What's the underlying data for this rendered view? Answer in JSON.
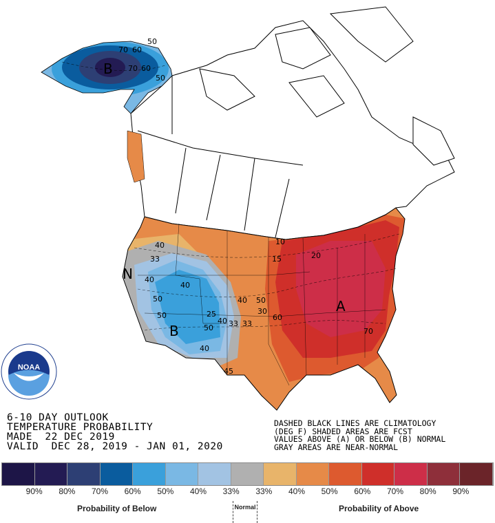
{
  "header": {
    "line1": "6-10 DAY OUTLOOK",
    "line2": "TEMPERATURE PROBABILITY",
    "line3": "MADE  22 DEC 2019",
    "line4": "VALID  DEC 28, 2019 - JAN 01, 2020"
  },
  "notes": {
    "line1": "DASHED BLACK LINES ARE CLIMATOLOGY",
    "line2": "(DEG F) SHADED AREAS ARE FCST",
    "line3": "VALUES ABOVE (A) OR BELOW (B) NORMAL",
    "line4": "GRAY AREAS ARE NEAR-NORMAL"
  },
  "logo": {
    "text": "NOAA",
    "ring_text": "NATIONAL OCEANIC AND ATMOSPHERIC ADMINISTRATION · U.S. DEPARTMENT OF COMMERCE"
  },
  "legend": {
    "colors": [
      "#1d1547",
      "#231b53",
      "#2d3f74",
      "#0a5c9e",
      "#3aa0db",
      "#7ab8e4",
      "#a2c3e3",
      "#b0b0b0",
      "#e8b46a",
      "#e68a48",
      "#dd5a2f",
      "#cf2f2a",
      "#cd2e48",
      "#8e2f3a",
      "#6b2429"
    ],
    "ticks": [
      "90%",
      "80%",
      "70%",
      "60%",
      "50%",
      "40%",
      "33%",
      "33%",
      "40%",
      "50%",
      "60%",
      "70%",
      "80%",
      "90%"
    ],
    "below_label": "Probability of Below",
    "normal_label": "Normal",
    "above_label": "Probability of Above"
  },
  "map": {
    "markers": {
      "above": "A",
      "below_west": "B",
      "below_alaska": "B",
      "normal": "N"
    },
    "contour_labels": [
      "40",
      "33",
      "40",
      "50",
      "50",
      "40",
      "25",
      "40",
      "33",
      "33",
      "50",
      "40",
      "45",
      "40",
      "50",
      "60",
      "70",
      "20",
      "15",
      "10",
      "30",
      "70",
      "60",
      "50",
      "50",
      "70",
      "60"
    ]
  }
}
